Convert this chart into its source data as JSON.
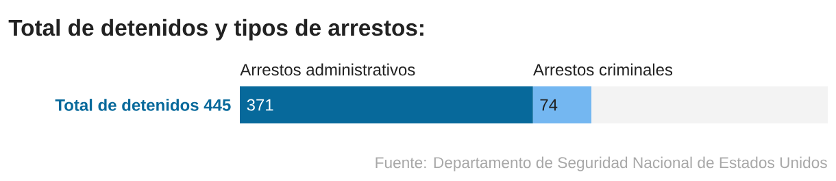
{
  "chart_data": {
    "type": "bar",
    "orientation": "horizontal",
    "stacked": true,
    "title": "Total de detenidos y tipos de arrestos:",
    "categories": [
      "Total de detenidos 445"
    ],
    "series": [
      {
        "name": "Arrestos administrativos",
        "color": "#07699b",
        "values": [
          371
        ]
      },
      {
        "name": "Arrestos criminales",
        "color": "#74b7f1",
        "values": [
          74
        ]
      }
    ],
    "tick_labels": "y",
    "data_labels": true,
    "annotations": [
      "Fuente: Departamento de Seguridad Nacional de Estados Unidos"
    ]
  }
}
